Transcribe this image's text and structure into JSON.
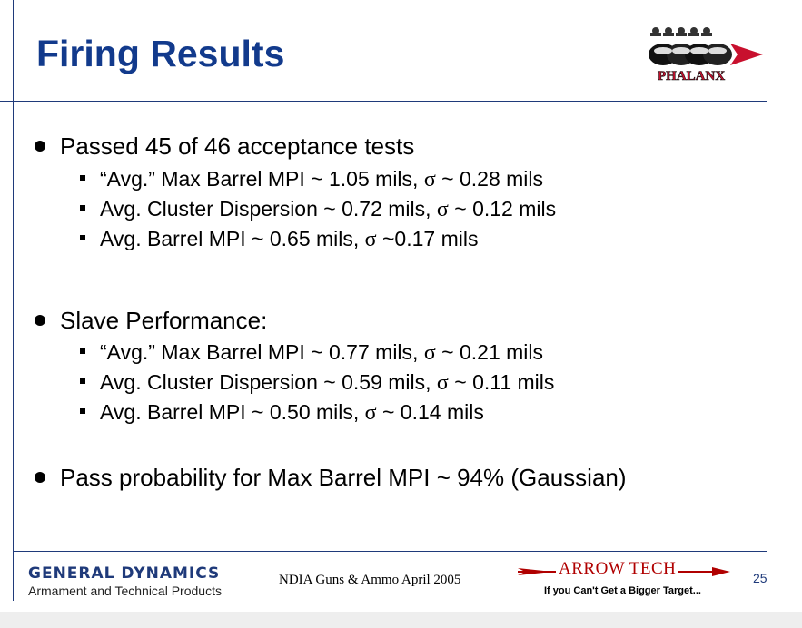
{
  "slide": {
    "title": "Firing Results",
    "logo_text": "PHALANX",
    "sections": [
      {
        "bullet": "Passed 45 of 46 acceptance tests",
        "items": [
          {
            "pre": "“Avg.” Max Barrel MPI ~ 1.05 mils, ",
            "sigma": "σ",
            "post": " ~ 0.28 mils"
          },
          {
            "pre": "Avg. Cluster Dispersion ~ 0.72 mils, ",
            "sigma": "σ",
            "post": " ~ 0.12 mils"
          },
          {
            "pre": "Avg. Barrel MPI ~ 0.65 mils, ",
            "sigma": "σ",
            "post": " ~0.17 mils"
          }
        ]
      },
      {
        "bullet": "Slave Performance:",
        "items": [
          {
            "pre": "“Avg.” Max Barrel MPI ~ 0.77 mils, ",
            "sigma": "σ",
            "post": " ~ 0.21 mils"
          },
          {
            "pre": "Avg. Cluster Dispersion  ~ 0.59 mils, ",
            "sigma": "σ",
            "post": " ~ 0.11 mils"
          },
          {
            "pre": "Avg. Barrel MPI ~ 0.50 mils, ",
            "sigma": "σ",
            "post": " ~ 0.14 mils"
          }
        ]
      },
      {
        "bullet": "Pass probability for Max Barrel MPI ~ 94% (Gaussian)",
        "items": []
      }
    ]
  },
  "footer": {
    "company": "GENERAL DYNAMICS",
    "division": "Armament and Technical Products",
    "conference": "NDIA Guns & Ammo April 2005",
    "arrowtech_name": "ARROW TECH",
    "arrowtech_tagline": "If you Can't Get a Bigger Target...",
    "page_number": "25"
  },
  "colors": {
    "title": "#123a8c",
    "rule": "#1f3a7a",
    "arrowtech_red": "#b00000"
  }
}
